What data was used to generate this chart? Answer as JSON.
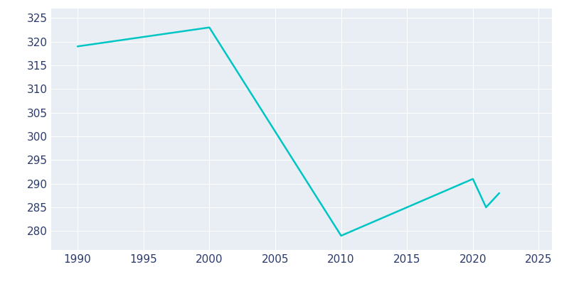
{
  "years": [
    1990,
    2000,
    2010,
    2020,
    2021,
    2022
  ],
  "population": [
    319,
    323,
    279,
    291,
    285,
    288
  ],
  "line_color": "#00C5C5",
  "background_color": "#E8EEF4",
  "plot_background": "#DAE3ED",
  "grid_color": "#FFFFFF",
  "text_color": "#2B3A6B",
  "xlim": [
    1988,
    2026
  ],
  "ylim": [
    276,
    327
  ],
  "yticks": [
    280,
    285,
    290,
    295,
    300,
    305,
    310,
    315,
    320,
    325
  ],
  "xticks": [
    1990,
    1995,
    2000,
    2005,
    2010,
    2015,
    2020,
    2025
  ],
  "line_width": 1.8,
  "tick_fontsize": 11
}
